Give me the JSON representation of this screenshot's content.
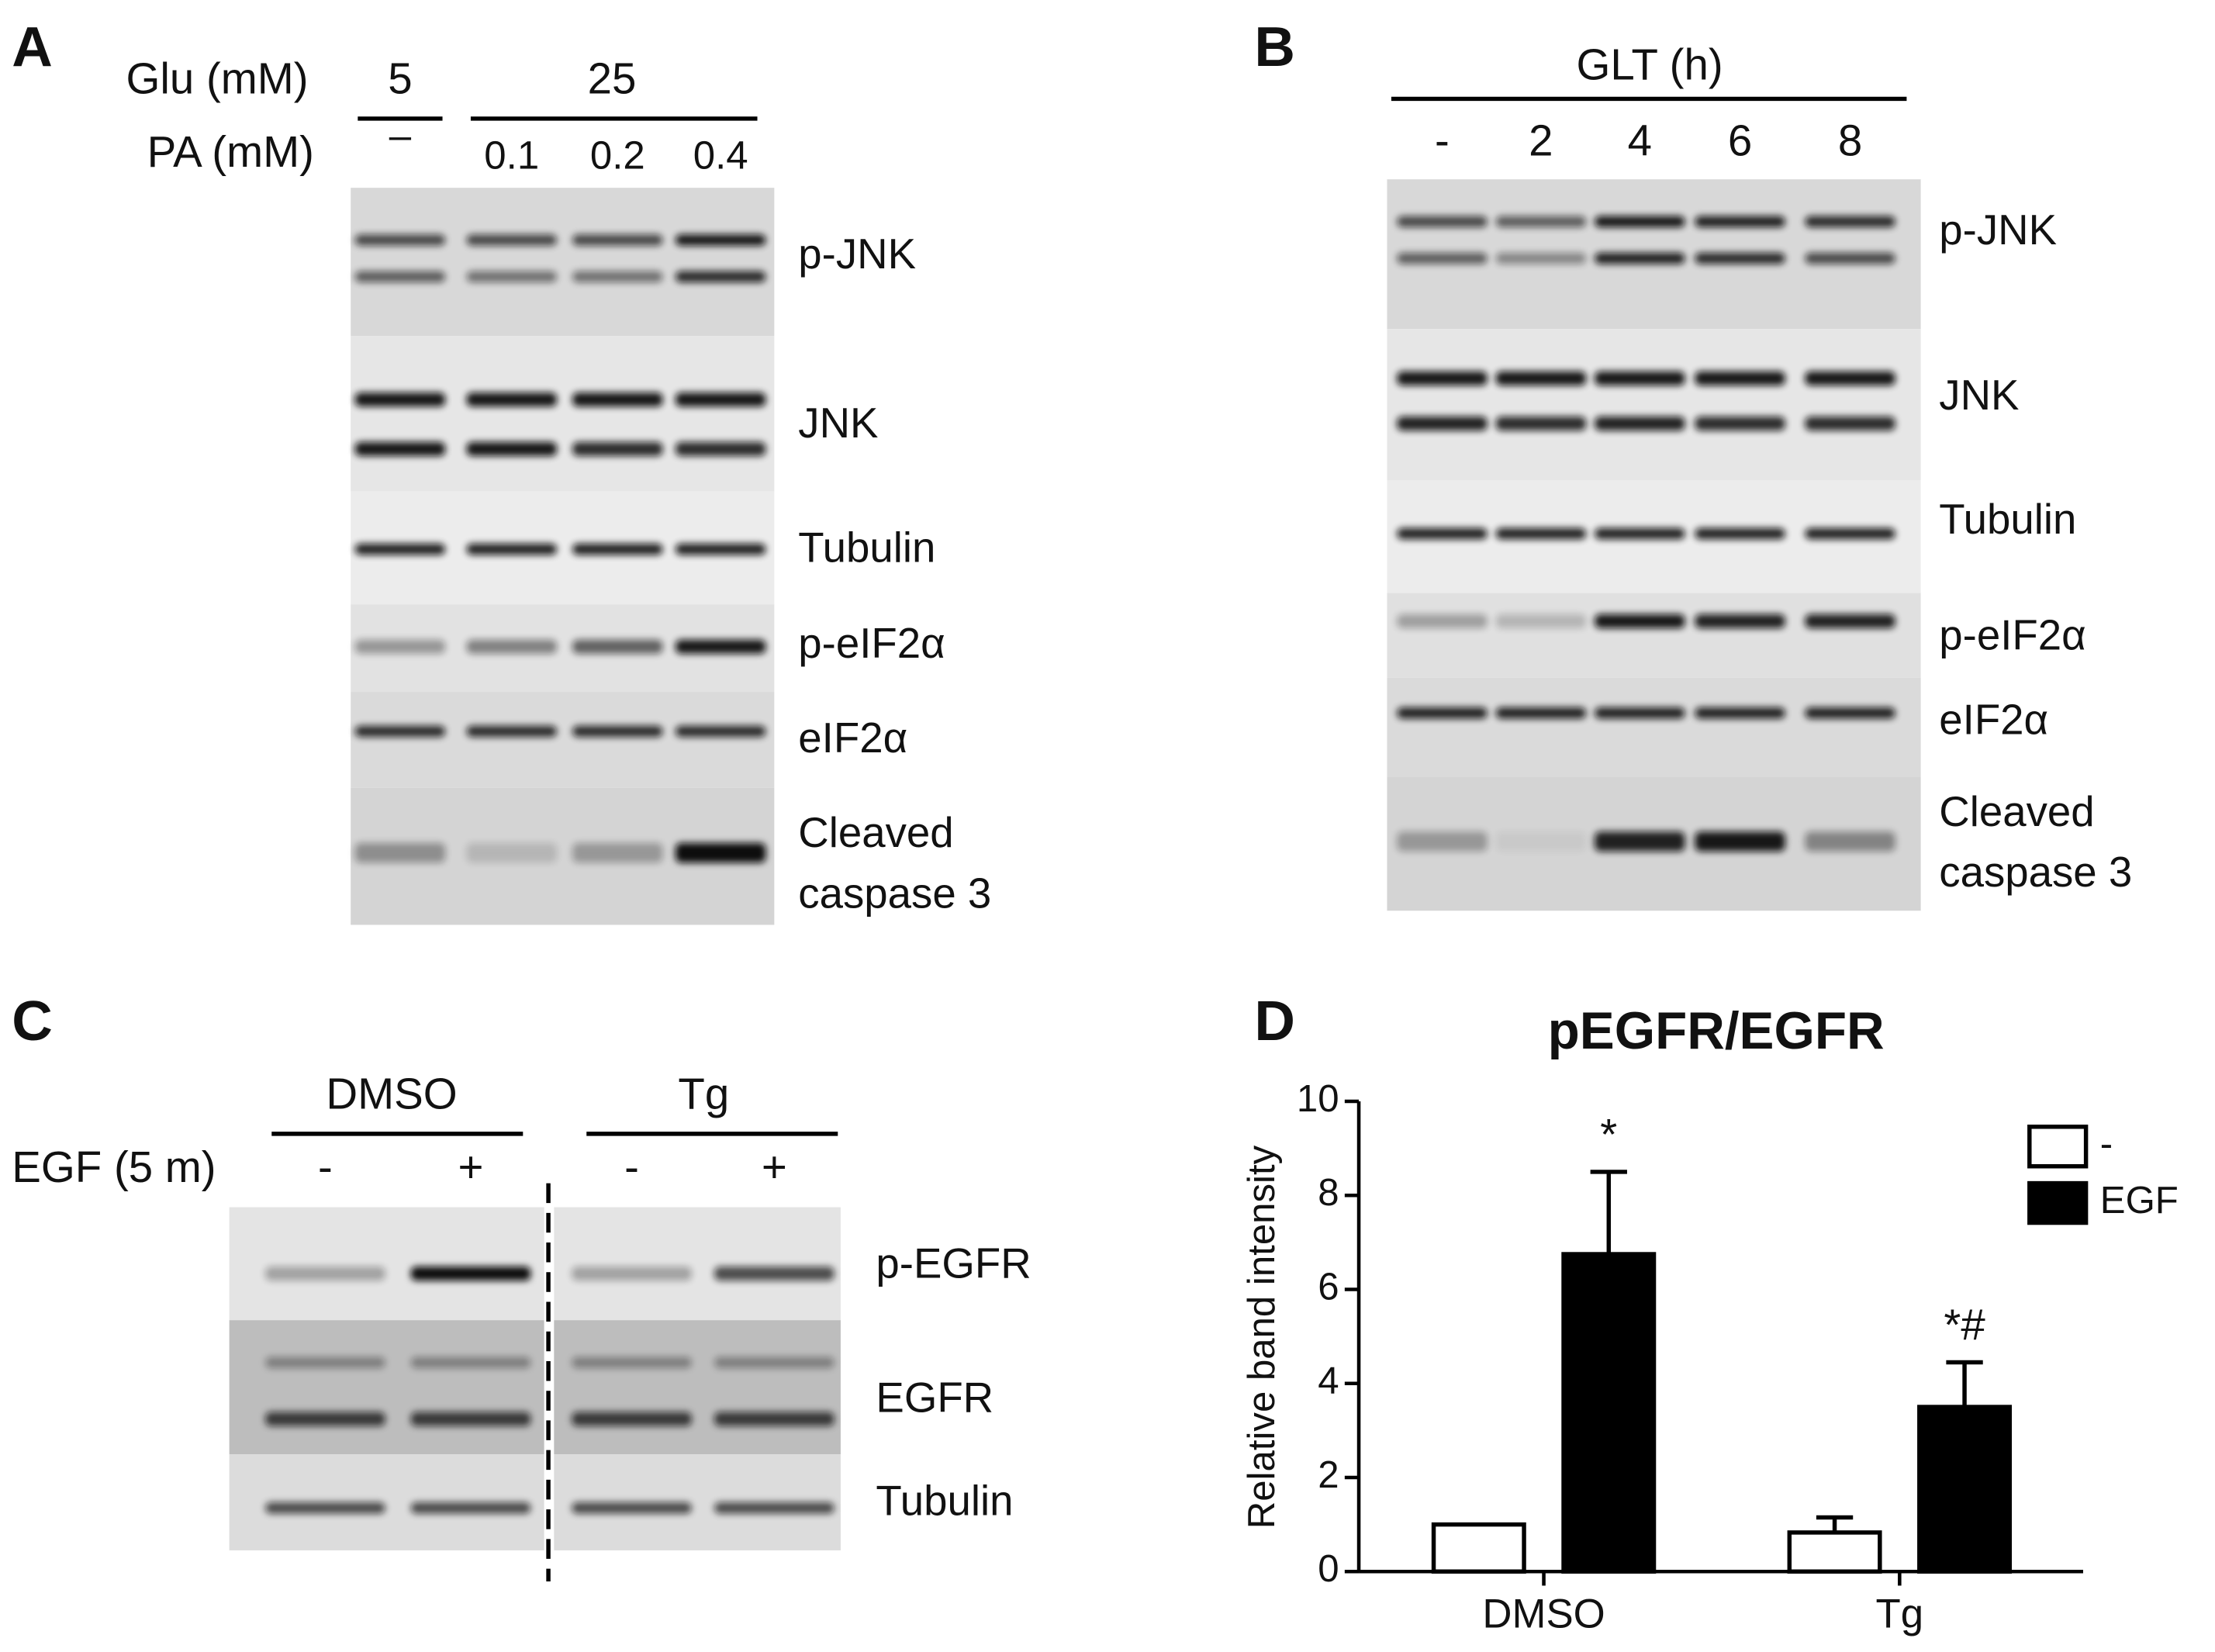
{
  "panels": {
    "A": {
      "label": "A",
      "row_labels": [
        "Glu (mM)",
        "PA  (mM)"
      ],
      "glu_groups": [
        "5",
        "25"
      ],
      "pa_values": [
        "–",
        "0.1",
        "0.2",
        "0.4"
      ],
      "blots": [
        [
          "p-JNK"
        ],
        [
          "JNK"
        ],
        [
          "Tubulin"
        ],
        [
          "p-eIF2α"
        ],
        [
          "eIF2α"
        ],
        [
          "Cleaved",
          "caspase 3"
        ]
      ]
    },
    "B": {
      "label": "B",
      "header": "GLT (h)",
      "lanes": [
        "-",
        "2",
        "4",
        "6",
        "8"
      ],
      "blots": [
        [
          "p-JNK"
        ],
        [
          "JNK"
        ],
        [
          "Tubulin"
        ],
        [
          "p-eIF2α"
        ],
        [
          "eIF2α"
        ],
        [
          "Cleaved",
          "caspase 3"
        ]
      ]
    },
    "C": {
      "label": "C",
      "groups": [
        "DMSO",
        "Tg"
      ],
      "treatment_label": "EGF (5 m)",
      "lanes": [
        "-",
        "+",
        "-",
        "+"
      ],
      "blots": [
        [
          "p-EGFR"
        ],
        [
          "EGFR"
        ],
        [
          "Tubulin"
        ]
      ]
    }
  },
  "chart_data": {
    "type": "bar",
    "panel_label": "D",
    "title": "pEGFR/EGFR",
    "y_label": "Relative band intensity",
    "categories": [
      "DMSO",
      "Tg"
    ],
    "series": [
      {
        "name": "-",
        "color": "#ffffff",
        "values": [
          1.0,
          0.83
        ],
        "errors": [
          null,
          0.32
        ]
      },
      {
        "name": "EGF",
        "color": "#000000",
        "values": [
          6.75,
          3.5
        ],
        "errors": [
          1.75,
          0.95
        ]
      }
    ],
    "annotations": [
      "*",
      "*#"
    ],
    "ylim": [
      0,
      10
    ],
    "yticks": [
      0,
      2,
      4,
      6,
      8,
      10
    ]
  }
}
